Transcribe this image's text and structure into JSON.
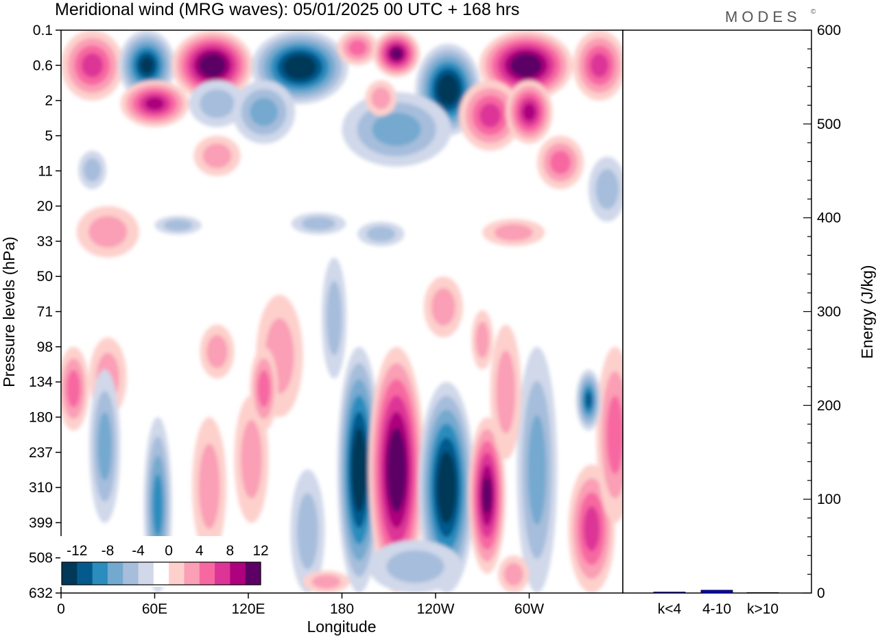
{
  "header": {
    "title": "Meridional wind (MRG waves):  05/01/2025  00 UTC  + 168 hrs",
    "logo": "MODES",
    "logo_mark": "©"
  },
  "chart_data": [
    {
      "type": "heatmap",
      "title": "Meridional wind (MRG waves):  05/01/2025  00 UTC  + 168 hrs",
      "xlabel": "Longitude",
      "ylabel": "Pressure levels (hPa)",
      "x_ticks": [
        "0",
        "60E",
        "120E",
        "180",
        "120W",
        "60W"
      ],
      "x_range_deg_east": [
        0,
        360
      ],
      "y_ticks": [
        "0.1",
        "0.6",
        "2",
        "5",
        "11",
        "20",
        "33",
        "50",
        "71",
        "98",
        "134",
        "180",
        "237",
        "310",
        "399",
        "508",
        "632"
      ],
      "y_scale": "log-pressure, decreasing upward",
      "colorbar": {
        "labels": [
          "-12",
          "-8",
          "-4",
          "0",
          "4",
          "8",
          "12"
        ],
        "levels": [
          -14,
          -12,
          -10,
          -8,
          -6,
          -4,
          -2,
          2,
          4,
          6,
          8,
          10,
          12,
          14
        ],
        "colors": [
          "#023858",
          "#045a8d",
          "#2b8cbe",
          "#74a9cf",
          "#a6bddb",
          "#d0d8ea",
          "#ffffff",
          "#fdd0cc",
          "#fa9fb5",
          "#f768a1",
          "#dd3497",
          "#ae017e",
          "#5c0066"
        ],
        "placement": "bottom-left inside plot"
      },
      "features": [
        {
          "region": "upper levels 0.1-5 hPa",
          "lon_start": 0,
          "lon_end": 360,
          "description": "alternating strong positive and negative cells"
        },
        {
          "region": "negative column",
          "lon_start": 182,
          "lon_end": 200,
          "p_top": 98,
          "p_bottom": 632,
          "peak": -14
        },
        {
          "region": "positive column",
          "lon_start": 203,
          "lon_end": 228,
          "p_top": 98,
          "p_bottom": 632,
          "peak": 14
        },
        {
          "region": "negative column",
          "lon_start": 235,
          "lon_end": 262,
          "p_top": 134,
          "p_bottom": 632,
          "peak": -14
        },
        {
          "region": "positive column",
          "lon_start": 262,
          "lon_end": 285,
          "p_top": 180,
          "p_bottom": 508,
          "peak": 12
        }
      ]
    },
    {
      "type": "bar",
      "categories": [
        "k<4",
        "4-10",
        "k>10"
      ],
      "values": [
        1,
        3,
        0.5
      ],
      "ylabel": "Energy (J/kg)",
      "ylim": [
        0,
        600
      ],
      "y_ticks": [
        "0",
        "100",
        "200",
        "300",
        "400",
        "500",
        "600"
      ],
      "bar_colors": [
        "#0000cc",
        "#0000cc",
        "#0000cc"
      ]
    }
  ]
}
